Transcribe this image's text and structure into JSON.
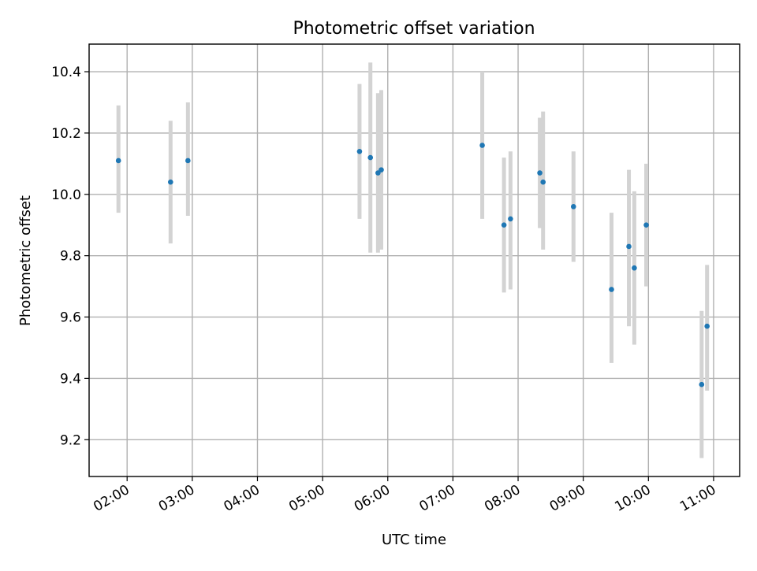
{
  "chart_data": {
    "type": "scatter",
    "title": "Photometric offset variation",
    "xlabel": "UTC time",
    "ylabel": "Photometric offset",
    "x_unit": "UTC time (HH:MM)",
    "xlim": [
      "01:25",
      "11:24"
    ],
    "ylim": [
      9.08,
      10.49
    ],
    "x_ticks": [
      "02:00",
      "03:00",
      "04:00",
      "05:00",
      "06:00",
      "07:00",
      "08:00",
      "09:00",
      "10:00",
      "11:00"
    ],
    "y_ticks": [
      9.2,
      9.4,
      9.6,
      9.8,
      10.0,
      10.2,
      10.4
    ],
    "y_tick_labels": [
      "9.2",
      "9.4",
      "9.6",
      "9.8",
      "10.0",
      "10.2",
      "10.4"
    ],
    "grid": true,
    "marker_color": "#1f77b4",
    "errorbar_color": "#d3d3d3",
    "points": [
      {
        "t": "01:52",
        "y": 10.11,
        "lo": 9.94,
        "hi": 10.29
      },
      {
        "t": "02:40",
        "y": 10.04,
        "lo": 9.84,
        "hi": 10.24
      },
      {
        "t": "02:56",
        "y": 10.11,
        "lo": 9.93,
        "hi": 10.3
      },
      {
        "t": "05:34",
        "y": 10.14,
        "lo": 9.92,
        "hi": 10.36
      },
      {
        "t": "05:44",
        "y": 10.12,
        "lo": 9.81,
        "hi": 10.43
      },
      {
        "t": "05:51",
        "y": 10.07,
        "lo": 9.81,
        "hi": 10.33
      },
      {
        "t": "05:54",
        "y": 10.08,
        "lo": 9.82,
        "hi": 10.34
      },
      {
        "t": "07:27",
        "y": 10.16,
        "lo": 9.92,
        "hi": 10.4
      },
      {
        "t": "07:47",
        "y": 9.9,
        "lo": 9.68,
        "hi": 10.12
      },
      {
        "t": "07:53",
        "y": 9.92,
        "lo": 9.69,
        "hi": 10.14
      },
      {
        "t": "08:20",
        "y": 10.07,
        "lo": 9.89,
        "hi": 10.25
      },
      {
        "t": "08:23",
        "y": 10.04,
        "lo": 9.82,
        "hi": 10.27
      },
      {
        "t": "08:51",
        "y": 9.96,
        "lo": 9.78,
        "hi": 10.14
      },
      {
        "t": "09:26",
        "y": 9.69,
        "lo": 9.45,
        "hi": 9.94
      },
      {
        "t": "09:42",
        "y": 9.83,
        "lo": 9.57,
        "hi": 10.08
      },
      {
        "t": "09:47",
        "y": 9.76,
        "lo": 9.51,
        "hi": 10.01
      },
      {
        "t": "09:58",
        "y": 9.9,
        "lo": 9.7,
        "hi": 10.1
      },
      {
        "t": "10:49",
        "y": 9.38,
        "lo": 9.14,
        "hi": 9.62
      },
      {
        "t": "10:54",
        "y": 9.57,
        "lo": 9.36,
        "hi": 9.77
      }
    ]
  }
}
